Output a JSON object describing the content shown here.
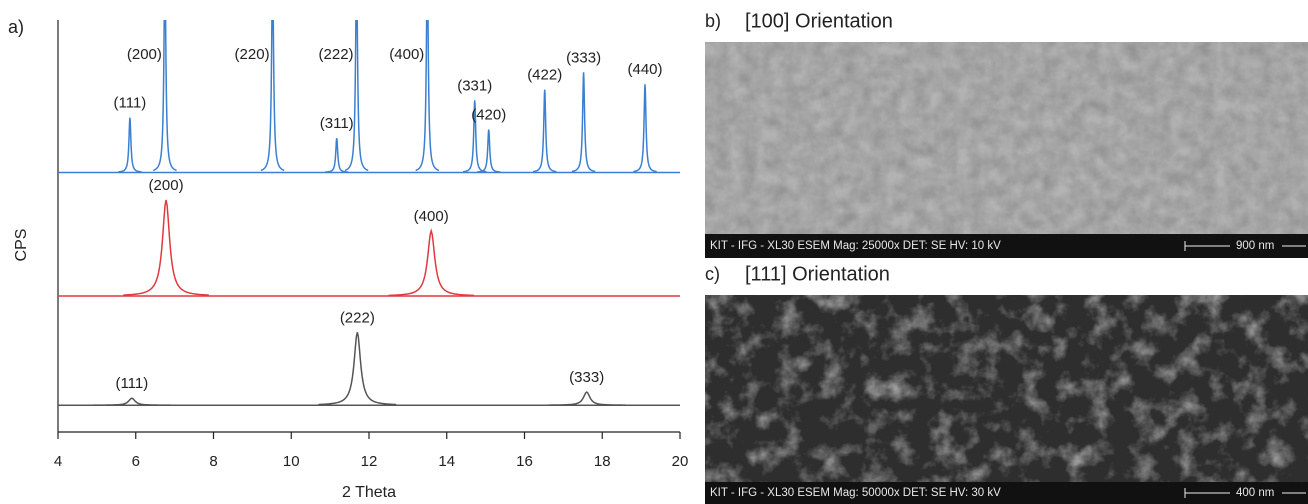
{
  "chart_data": {
    "type": "xrd",
    "panel_label": "a)",
    "xlabel": "2 Theta",
    "ylabel": "CPS",
    "xlim": [
      4,
      20
    ],
    "xticks": [
      4,
      6,
      8,
      10,
      12,
      14,
      16,
      18,
      20
    ],
    "ylim": [
      0,
      100
    ],
    "series": [
      {
        "color": "#3b7fd1",
        "baseline": 63,
        "fwhm": 0.06,
        "peaks": [
          {
            "label": "(111)",
            "x": 5.85,
            "height": 13.3
          },
          {
            "label": "(200)",
            "x": 6.75,
            "height": 50
          },
          {
            "label": "(220)",
            "x": 9.52,
            "height": 50
          },
          {
            "label": "(311)",
            "x": 11.17,
            "height": 8.3
          },
          {
            "label": "(222)",
            "x": 11.68,
            "height": 50
          },
          {
            "label": "(400)",
            "x": 13.5,
            "height": 50
          },
          {
            "label": "(331)",
            "x": 14.72,
            "height": 17.5
          },
          {
            "label": "(420)",
            "x": 15.08,
            "height": 10.4
          },
          {
            "label": "(422)",
            "x": 16.52,
            "height": 20.1
          },
          {
            "label": "(333)",
            "x": 17.52,
            "height": 24.3
          },
          {
            "label": "(440)",
            "x": 19.1,
            "height": 21.4
          }
        ]
      },
      {
        "color": "#e0393e",
        "baseline": 33,
        "fwhm": 0.22,
        "peaks": [
          {
            "label": "(200)",
            "x": 6.78,
            "height": 23.3
          },
          {
            "label": "(400)",
            "x": 13.6,
            "height": 15.8
          }
        ]
      },
      {
        "color": "#555555",
        "baseline": 6.5,
        "fwhm": 0.2,
        "peaks": [
          {
            "label": "(111)",
            "x": 5.9,
            "height": 1.7
          },
          {
            "label": "(222)",
            "x": 11.7,
            "height": 17.7
          },
          {
            "label": "(333)",
            "x": 17.6,
            "height": 3.2
          }
        ]
      }
    ]
  },
  "panels": [
    {
      "label": "b)",
      "title": "[100] Orientation",
      "info": "KIT - IFG - XL30 ESEM  Mag: 25000x  DET: SE  HV: 10 kV",
      "scale": "900 nm"
    },
    {
      "label": "c)",
      "title": "[111] Orientation",
      "info": "KIT - IFG - XL30 ESEM  Mag: 50000x  DET: SE  HV: 30 kV",
      "scale": "400 nm"
    }
  ]
}
